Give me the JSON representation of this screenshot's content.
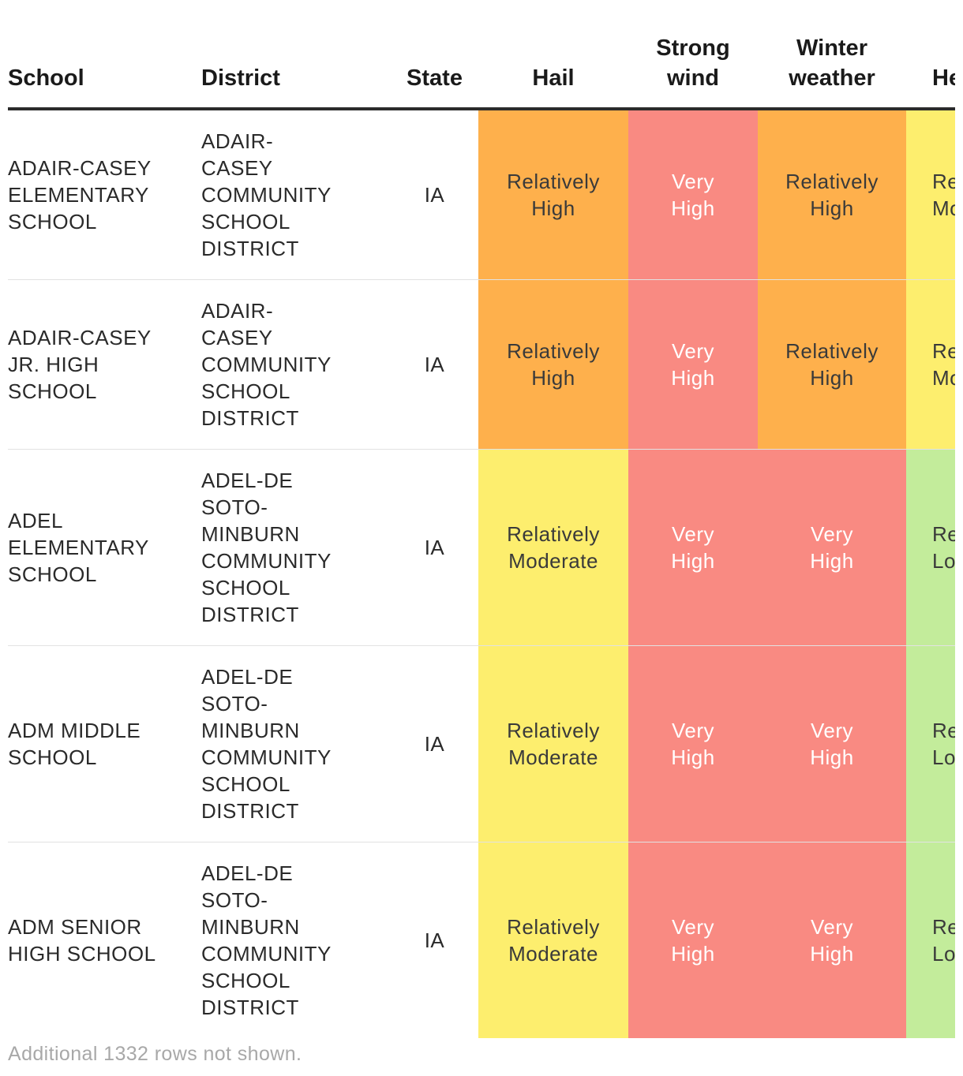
{
  "table": {
    "headers": {
      "school": "School",
      "district": "District",
      "state": "State",
      "hail": "Hail",
      "wind_line1": "Strong",
      "wind_line2": "wind",
      "winter_line1": "Winter",
      "winter_line2": "weather",
      "heat": "Heat"
    },
    "rows": [
      {
        "school": "ADAIR-CASEY ELEMENTARY SCHOOL",
        "district": "ADAIR-CASEY COMMUNITY SCHOOL DISTRICT",
        "state": "IA",
        "hail": "Relatively High",
        "wind": "Very High",
        "winter": "Relatively High",
        "heat": "Relatively Moderate"
      },
      {
        "school": "ADAIR-CASEY JR. HIGH SCHOOL",
        "district": "ADAIR-CASEY COMMUNITY SCHOOL DISTRICT",
        "state": "IA",
        "hail": "Relatively High",
        "wind": "Very High",
        "winter": "Relatively High",
        "heat": "Relatively Moderate"
      },
      {
        "school": "ADEL ELEMENTARY SCHOOL",
        "district": "ADEL-DE SOTO-MINBURN COMMUNITY SCHOOL DISTRICT",
        "state": "IA",
        "hail": "Relatively Moderate",
        "wind": "Very High",
        "winter": "Very High",
        "heat": "Relatively Low"
      },
      {
        "school": "ADM MIDDLE SCHOOL",
        "district": "ADEL-DE SOTO-MINBURN COMMUNITY SCHOOL DISTRICT",
        "state": "IA",
        "hail": "Relatively Moderate",
        "wind": "Very High",
        "winter": "Very High",
        "heat": "Relatively Low"
      },
      {
        "school": "ADM SENIOR HIGH SCHOOL",
        "district": "ADEL-DE SOTO-MINBURN COMMUNITY SCHOOL DISTRICT",
        "state": "IA",
        "hail": "Relatively Moderate",
        "wind": "Very High",
        "winter": "Very High",
        "heat": "Relatively Low"
      }
    ]
  },
  "risk_colors": {
    "Very High": "#f98a82",
    "Relatively High": "#feb04c",
    "Relatively Moderate": "#fdee6e",
    "Relatively Low": "#c3ec9b"
  },
  "footer": {
    "note": "Additional 1332 rows not shown."
  }
}
